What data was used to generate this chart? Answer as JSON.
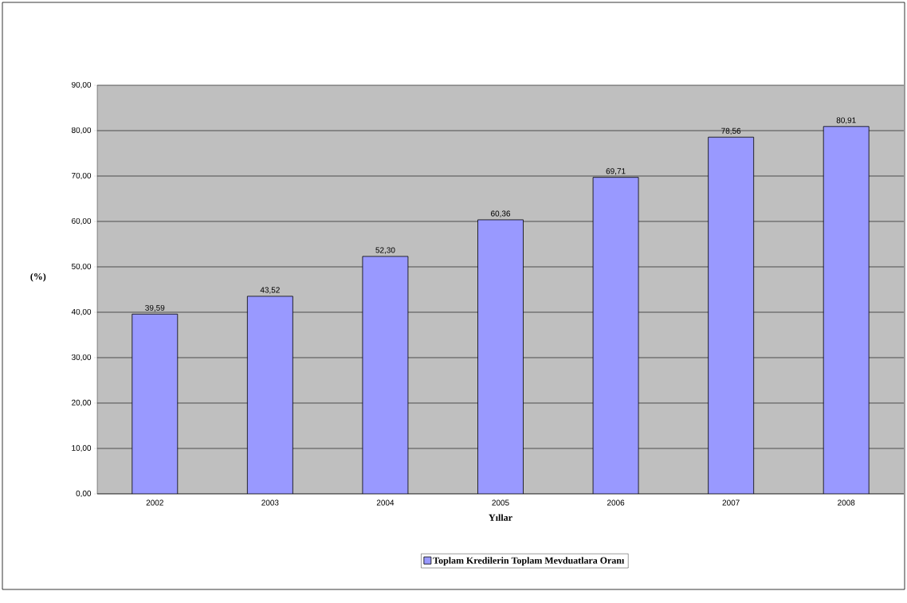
{
  "chart_data": {
    "type": "bar",
    "xlabel": "Yıllar",
    "ylabel": "(%)",
    "categories": [
      "2002",
      "2003",
      "2004",
      "2005",
      "2006",
      "2007",
      "2008"
    ],
    "series": [
      {
        "name": "Toplam Kredilerin Toplam Mevduatlara Oranı",
        "color": "#9999ff",
        "values": [
          39.59,
          43.52,
          52.3,
          60.36,
          69.71,
          78.56,
          80.91
        ],
        "value_labels": [
          "39,59",
          "43,52",
          "52,30",
          "60,36",
          "69,71",
          "78,56",
          "80,91"
        ]
      }
    ],
    "ylim": [
      0,
      90
    ],
    "yticks": [
      {
        "value": 0,
        "label": "0,00"
      },
      {
        "value": 10,
        "label": "10,00"
      },
      {
        "value": 20,
        "label": "20,00"
      },
      {
        "value": 30,
        "label": "30,00"
      },
      {
        "value": 40,
        "label": "40,00"
      },
      {
        "value": 50,
        "label": "50,00"
      },
      {
        "value": 60,
        "label": "60,00"
      },
      {
        "value": 70,
        "label": "70,00"
      },
      {
        "value": 80,
        "label": "80,00"
      },
      {
        "value": 90,
        "label": "90,00"
      }
    ],
    "grid": "y",
    "legend": "bottom"
  }
}
